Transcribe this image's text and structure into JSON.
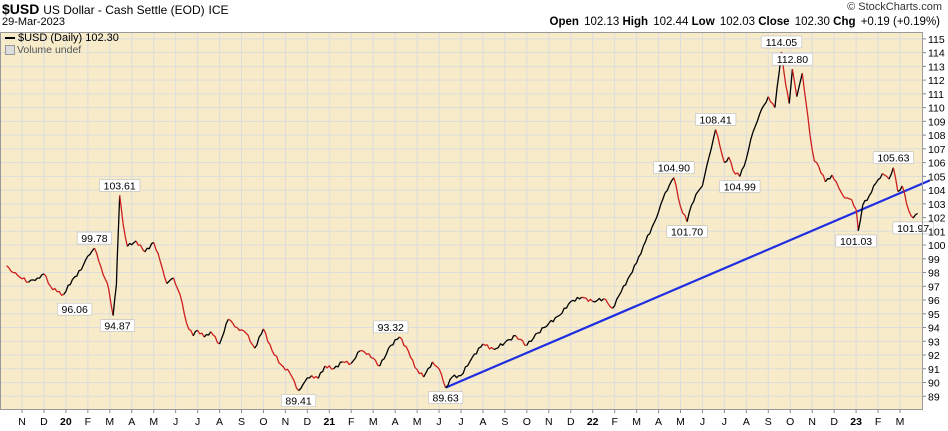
{
  "header": {
    "symbol": "$USD",
    "name": "US Dollar - Cash Settle (EOD)",
    "exchange": "ICE",
    "date": "29-Mar-2023",
    "brand": "© StockCharts.com",
    "open_label": "Open",
    "open": "102.13",
    "high_label": "High",
    "high": "102.44",
    "low_label": "Low",
    "low": "102.03",
    "close_label": "Close",
    "close": "102.30",
    "chg_label": "Chg",
    "chg": "+0.19 (+0.19%)"
  },
  "legend": {
    "series_label": "$USD (Daily) 102.30",
    "volume_label": "Volume undef"
  },
  "colors": {
    "background_fill": "#f7ebc9",
    "up_line": "#000000",
    "down_line": "#cc1f1f",
    "trend_line": "#1f2ee0",
    "grid": "#dddddd"
  },
  "chart_data": {
    "type": "line",
    "title": "$USD (Daily) 102.30",
    "xlabel": "",
    "ylabel": "",
    "ylim": [
      88,
      115.5
    ],
    "y_ticks": [
      89,
      90,
      91,
      92,
      93,
      94,
      95,
      96,
      97,
      98,
      99,
      100,
      101,
      102,
      103,
      104,
      105,
      106,
      107,
      108,
      109,
      110,
      111,
      112,
      113,
      114,
      115
    ],
    "x_tick_labels": [
      "N",
      "D",
      "20",
      "F",
      "M",
      "A",
      "M",
      "J",
      "J",
      "A",
      "S",
      "O",
      "N",
      "D",
      "21",
      "F",
      "M",
      "A",
      "M",
      "J",
      "J",
      "A",
      "S",
      "O",
      "N",
      "D",
      "22",
      "F",
      "M",
      "A",
      "M",
      "J",
      "J",
      "A",
      "S",
      "O",
      "N",
      "D",
      "23",
      "F",
      "M"
    ],
    "x_month_index": [
      0,
      1,
      2,
      3,
      4,
      5,
      6,
      7,
      8,
      9,
      10,
      11,
      12,
      13,
      14,
      15,
      16,
      17,
      18,
      19,
      20,
      21,
      22,
      23,
      24,
      25,
      26,
      27,
      28,
      29,
      30,
      31,
      32,
      33,
      34,
      35,
      36,
      37,
      38,
      39,
      40
    ],
    "grid": true,
    "series": [
      {
        "x": [
          -0.7,
          -0.5,
          -0.2,
          0.3,
          0.7,
          1.0,
          1.3,
          1.6,
          1.9,
          2.3,
          2.7,
          3.0,
          3.3,
          3.6,
          3.8,
          3.95,
          4.15,
          4.3,
          4.35,
          4.45,
          4.6,
          4.8,
          5.2,
          5.6,
          6.0,
          6.3,
          6.6,
          6.9,
          7.2,
          7.5,
          7.8,
          8.0,
          8.3,
          8.6,
          9.0,
          9.4,
          9.8,
          10.2,
          10.6,
          11.0,
          11.4,
          11.8,
          12.2,
          12.6,
          12.9,
          13.2,
          13.5,
          13.8,
          14.2,
          14.6,
          15.0,
          15.4,
          15.8,
          16.3,
          16.8,
          17.2,
          17.6,
          17.9,
          18.3,
          18.7,
          19.0,
          19.3,
          19.6,
          20.0,
          20.5,
          21.0,
          21.5,
          22.0,
          22.5,
          23.0,
          23.5,
          24.0,
          24.5,
          25.0,
          25.5,
          26.0,
          26.5,
          26.9,
          27.3,
          27.7,
          28.0,
          28.3,
          28.7,
          29.0,
          29.3,
          29.7,
          30.0,
          30.3,
          30.5,
          30.8,
          31.0,
          31.3,
          31.6,
          32.0,
          32.2,
          32.4,
          32.7,
          33.0,
          33.3,
          33.6,
          34.0,
          34.3,
          34.6,
          34.8,
          34.95,
          35.1,
          35.3,
          35.55,
          35.7,
          35.9,
          36.1,
          36.3,
          36.6,
          36.9,
          37.2,
          37.5,
          37.8,
          38.0,
          38.1,
          38.3,
          38.6,
          38.9,
          39.2,
          39.5,
          39.7,
          39.9,
          40.1,
          40.4,
          40.6,
          40.8
        ],
        "y": [
          98.5,
          98.1,
          97.8,
          97.3,
          97.6,
          97.9,
          97.0,
          96.6,
          96.4,
          97.5,
          98.2,
          99.2,
          99.78,
          98.4,
          97.5,
          96.8,
          94.87,
          97.1,
          99.5,
          103.61,
          101.6,
          99.9,
          100.3,
          99.5,
          100.2,
          98.8,
          97.2,
          97.6,
          96.4,
          94.3,
          93.4,
          93.8,
          93.3,
          93.7,
          92.8,
          94.6,
          94.0,
          93.6,
          92.5,
          93.9,
          92.3,
          91.3,
          90.7,
          89.41,
          90.1,
          90.5,
          90.3,
          91.2,
          91.0,
          91.5,
          91.4,
          92.3,
          92.1,
          91.2,
          92.7,
          93.32,
          92.3,
          91.1,
          90.4,
          91.5,
          91.0,
          89.63,
          90.4,
          90.5,
          91.8,
          92.8,
          92.4,
          92.9,
          93.4,
          92.7,
          93.6,
          94.3,
          94.9,
          95.9,
          96.2,
          95.9,
          96.1,
          95.4,
          96.6,
          97.8,
          98.7,
          99.9,
          101.3,
          102.4,
          103.8,
          104.9,
          102.8,
          101.7,
          102.9,
          103.9,
          104.3,
          106.4,
          108.41,
          106.0,
          106.4,
          105.4,
          104.99,
          106.3,
          108.2,
          109.5,
          110.8,
          110.0,
          114.05,
          111.6,
          110.3,
          112.8,
          110.8,
          112.5,
          110.6,
          108.0,
          106.1,
          105.7,
          104.6,
          105.1,
          104.2,
          103.4,
          103.3,
          102.6,
          101.03,
          102.9,
          103.6,
          104.5,
          105.2,
          104.8,
          105.63,
          103.9,
          104.3,
          102.5,
          101.97,
          102.3
        ],
        "highlighted_labels": [
          "96.06",
          "99.78",
          "94.87",
          "103.61",
          "89.41",
          "93.32",
          "89.63",
          "104.90",
          "101.70",
          "108.41",
          "104.99",
          "114.05",
          "112.80",
          "101.03",
          "105.63",
          "101.97"
        ]
      }
    ],
    "annotations": [
      {
        "text": "96.06",
        "x": 2.4,
        "y": 96.06
      },
      {
        "text": "99.78",
        "x": 3.3,
        "y": 99.78
      },
      {
        "text": "94.87",
        "x": 4.35,
        "y": 94.87
      },
      {
        "text": "103.61",
        "x": 4.45,
        "y": 103.61
      },
      {
        "text": "89.41",
        "x": 12.6,
        "y": 89.41
      },
      {
        "text": "93.32",
        "x": 16.8,
        "y": 93.32
      },
      {
        "text": "89.63",
        "x": 19.3,
        "y": 89.63
      },
      {
        "text": "104.90",
        "x": 29.7,
        "y": 104.9
      },
      {
        "text": "101.70",
        "x": 30.3,
        "y": 101.7
      },
      {
        "text": "108.41",
        "x": 31.6,
        "y": 108.41
      },
      {
        "text": "104.99",
        "x": 32.7,
        "y": 104.99
      },
      {
        "text": "114.05",
        "x": 34.6,
        "y": 114.05
      },
      {
        "text": "112.80",
        "x": 35.1,
        "y": 112.8
      },
      {
        "text": "101.03",
        "x": 38.0,
        "y": 101.03
      },
      {
        "text": "105.63",
        "x": 39.7,
        "y": 105.63
      },
      {
        "text": "101.97",
        "x": 40.6,
        "y": 101.97
      }
    ],
    "trendline": {
      "x1": 19.3,
      "y1": 89.63,
      "x2": 41.35,
      "y2": 104.7
    }
  }
}
